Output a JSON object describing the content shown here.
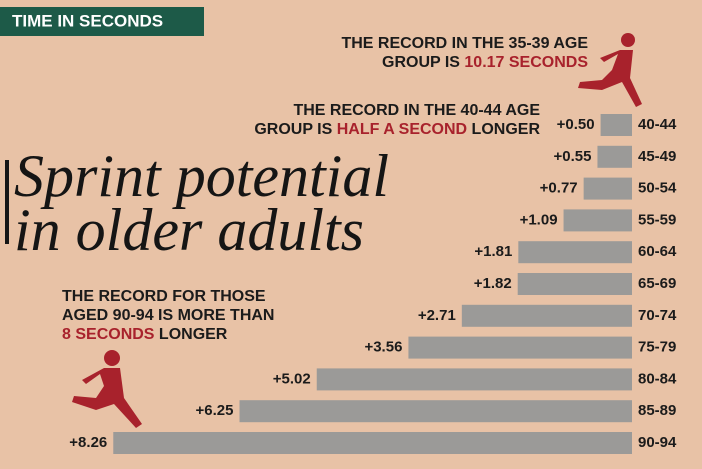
{
  "chart_data": {
    "type": "bar",
    "orientation": "horizontal",
    "label": "TIME IN SECONDS",
    "title": [
      "Sprint potential",
      "in older adults"
    ],
    "categories": [
      "40-44",
      "45-49",
      "50-54",
      "55-59",
      "60-64",
      "65-69",
      "70-74",
      "75-79",
      "80-84",
      "85-89",
      "90-94"
    ],
    "values": [
      0.5,
      0.55,
      0.77,
      1.09,
      1.81,
      1.82,
      2.71,
      3.56,
      5.02,
      6.25,
      8.26
    ],
    "value_labels": [
      "+0.50",
      "+0.55",
      "+0.77",
      "+1.09",
      "+1.81",
      "+1.82",
      "+2.71",
      "+3.56",
      "+5.02",
      "+6.25",
      "+8.26"
    ],
    "color": "#9b9a98",
    "annotations": [
      {
        "lines": [
          [
            {
              "text": "THE RECORD IN THE 35-39 AGE",
              "color": "#1b1b1b"
            }
          ],
          [
            {
              "text": "GROUP IS ",
              "color": "#1b1b1b"
            },
            {
              "text": "10.17 SECONDS",
              "color": "#a8222c"
            }
          ]
        ]
      },
      {
        "lines": [
          [
            {
              "text": "THE RECORD IN THE 40-44 AGE",
              "color": "#1b1b1b"
            }
          ],
          [
            {
              "text": "GROUP IS ",
              "color": "#1b1b1b"
            },
            {
              "text": "HALF A SECOND",
              "color": "#a8222c"
            },
            {
              "text": " LONGER",
              "color": "#1b1b1b"
            }
          ]
        ]
      },
      {
        "lines": [
          [
            {
              "text": "THE RECORD FOR THOSE",
              "color": "#1b1b1b"
            }
          ],
          [
            {
              "text": "AGED 90-94 IS MORE THAN",
              "color": "#1b1b1b"
            }
          ],
          [
            {
              "text": "8 SECONDS",
              "color": "#a8222c"
            },
            {
              "text": " LONGER",
              "color": "#1b1b1b"
            }
          ]
        ]
      }
    ]
  }
}
